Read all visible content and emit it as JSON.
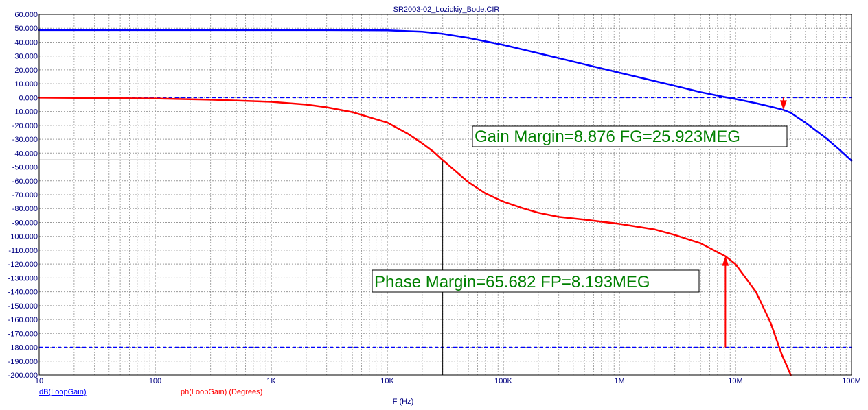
{
  "chart_data": {
    "type": "line",
    "title": "SR2003-02_Lozickiy_Bode.CIR",
    "xlabel": "F (Hz)",
    "x_scale": "log",
    "xlim": [
      10,
      100000000
    ],
    "ylim": [
      -200,
      60
    ],
    "grid": true,
    "x_tick_labels": [
      {
        "value": 10,
        "label": "10"
      },
      {
        "value": 100,
        "label": "100"
      },
      {
        "value": 1000,
        "label": "1K"
      },
      {
        "value": 10000,
        "label": "10K"
      },
      {
        "value": 100000,
        "label": "100K"
      },
      {
        "value": 1000000,
        "label": "1M"
      },
      {
        "value": 10000000,
        "label": "10M"
      },
      {
        "value": 100000000,
        "label": "100M"
      }
    ],
    "y_tick_labels": [
      "60.000",
      "50.000",
      "40.000",
      "30.000",
      "20.000",
      "10.000",
      "0.000",
      "-10.000",
      "-20.000",
      "-30.000",
      "-40.000",
      "-50.000",
      "-60.000",
      "-70.000",
      "-80.000",
      "-90.000",
      "-100.000",
      "-110.000",
      "-120.000",
      "-130.000",
      "-140.000",
      "-150.000",
      "-160.000",
      "-170.000",
      "-180.000",
      "-190.000",
      "-200.000"
    ],
    "series": [
      {
        "name": "dB(LoopGain)",
        "color": "#0000ff",
        "x": [
          10,
          30,
          100,
          300,
          1000,
          3000,
          10000,
          20000,
          30000,
          50000,
          100000,
          200000,
          300000,
          500000,
          1000000,
          2000000,
          3000000,
          5000000,
          8000000,
          10000000,
          15000000,
          20000000,
          25923000,
          30000000,
          40000000,
          60000000,
          80000000,
          100000000
        ],
        "y": [
          48.7,
          48.7,
          48.7,
          48.7,
          48.7,
          48.7,
          48.5,
          47.5,
          46.0,
          43.0,
          38.0,
          32.0,
          28.5,
          24.0,
          18.0,
          12.0,
          8.5,
          4.0,
          0.5,
          -1.0,
          -4.0,
          -6.5,
          -8.876,
          -11.0,
          -18.0,
          -29.0,
          -38.0,
          -45.5
        ]
      },
      {
        "name": "ph(LoopGain) (Degrees)",
        "color": "#ff0000",
        "x": [
          10,
          30,
          100,
          300,
          1000,
          2000,
          3000,
          5000,
          10000,
          15000,
          20000,
          25000,
          30000,
          40000,
          50000,
          70000,
          100000,
          150000,
          200000,
          300000,
          500000,
          1000000,
          2000000,
          3000000,
          5000000,
          8193000,
          10000000,
          15000000,
          20000000,
          25000000,
          30000000
        ],
        "y": [
          0,
          -0.3,
          -0.6,
          -1.5,
          -3.0,
          -5.0,
          -7.0,
          -10.5,
          -18.0,
          -26.0,
          -33.0,
          -39.0,
          -45.0,
          -54.0,
          -61.0,
          -69.0,
          -75.0,
          -80.0,
          -83.0,
          -86.0,
          -88.0,
          -91.0,
          -95.0,
          -99.0,
          -105.0,
          -114.318,
          -120.0,
          -140.0,
          -162.0,
          -185.0,
          -200.0
        ]
      },
      {
        "name": "0 dB reference",
        "color": "#0000ff",
        "style": "dashed",
        "x": [
          10,
          100000000
        ],
        "y": [
          0,
          0
        ]
      },
      {
        "name": "-180 deg reference",
        "color": "#0000ff",
        "style": "dashed",
        "x": [
          10,
          100000000
        ],
        "y": [
          -180,
          -180
        ]
      }
    ],
    "annotations": [
      {
        "text": "Gain Margin=8.876 FG=25.923MEG",
        "arrow_x": 25923000,
        "arrow_from_y": 0,
        "arrow_to_y": -8.876,
        "arrow_color": "#ff0000"
      },
      {
        "text": "Phase Margin=65.682 FP=8.193MEG",
        "arrow_x": 8193000,
        "arrow_from_y": -180,
        "arrow_to_y": -114.318,
        "arrow_color": "#ff0000"
      }
    ],
    "crosshair": {
      "x": 30000,
      "y": -45,
      "color": "#000000"
    },
    "legend": [
      {
        "label": "dB(LoopGain)",
        "color": "#0000ff"
      },
      {
        "label": "ph(LoopGain) (Degrees)",
        "color": "#ff0000"
      }
    ],
    "colors": {
      "grid": "#808080",
      "tick_text": "#000080",
      "annotation_text": "#008000",
      "background": "#ffffff"
    }
  }
}
